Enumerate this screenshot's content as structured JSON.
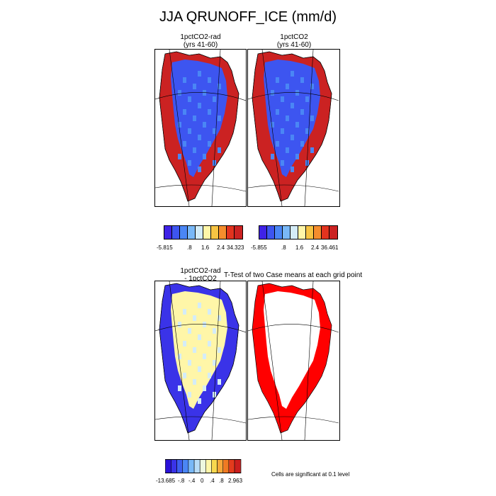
{
  "title": "JJA QRUNOFF_ICE (mm/d)",
  "panels": [
    {
      "title_line1": "1pctCO2-rad",
      "title_line2": "(yrs 41-60)"
    },
    {
      "title_line1": "1pctCO2",
      "title_line2": "(yrs 41-60)"
    },
    {
      "title_line1": "1pctCO2-rad",
      "title_line2": "- 1pctCO2"
    },
    {
      "title_line1": "T-Test of two Case means at each grid point",
      "title_line2": ""
    }
  ],
  "colorbars": [
    {
      "colors": [
        "#3f22e6",
        "#3d55f0",
        "#4a86f5",
        "#79b8f7",
        "#d4ecf8",
        "#fff6a8",
        "#f7c443",
        "#f58d2d",
        "#e2331f",
        "#cb2222"
      ],
      "labels": [
        "-5.815",
        ".8",
        "1.6",
        "2.4",
        "34.323"
      ]
    },
    {
      "colors": [
        "#3f22e6",
        "#3d55f0",
        "#4a86f5",
        "#79b8f7",
        "#d4ecf8",
        "#fff6a8",
        "#f7c443",
        "#f58d2d",
        "#e2331f",
        "#cb2222"
      ],
      "labels": [
        "-5.855",
        ".8",
        "1.6",
        "2.4",
        "36.461"
      ]
    },
    {
      "colors": [
        "#2a11d9",
        "#3a33e8",
        "#3d5ef0",
        "#4a86f5",
        "#79b8f7",
        "#b8dcf7",
        "#eef8e0",
        "#fff6a8",
        "#f9d84e",
        "#f7a83a",
        "#f07a22",
        "#e33b1d",
        "#cb1e1e"
      ],
      "labels": [
        "-13.685",
        "-.8",
        "-.4",
        "0",
        ".4",
        ".8",
        "2.963"
      ]
    }
  ],
  "significance_note": "Cells are significant at 0.1 level",
  "colors": {
    "ocean_land": "#ffffff",
    "runoff_high": "#cb2222",
    "interior_low": "#3d55f0",
    "significant": "#ff0000",
    "diff_interior": "#fff6a8"
  }
}
